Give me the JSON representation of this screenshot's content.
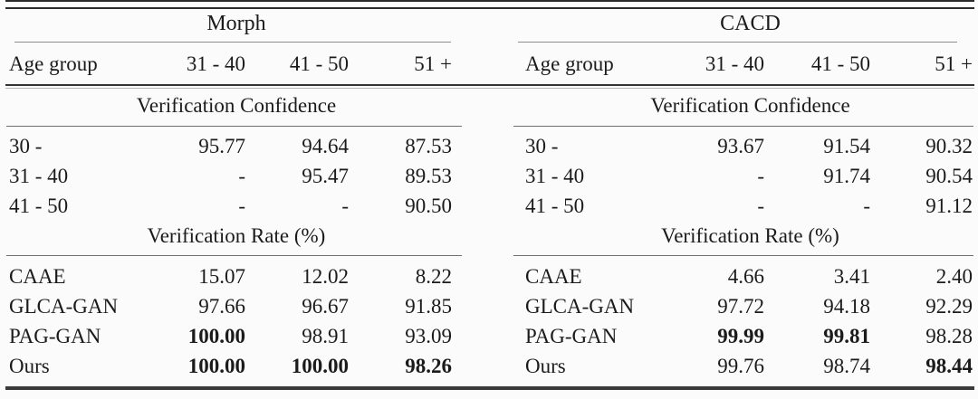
{
  "panels": [
    {
      "title": "Morph",
      "age_group_label": "Age group",
      "columns": [
        "31 - 40",
        "41 - 50",
        "51 +"
      ],
      "confidence": {
        "title": "Verification Confidence",
        "rows": [
          {
            "label": "30 -",
            "values": [
              "95.77",
              "94.64",
              "87.53"
            ],
            "bold": [
              false,
              false,
              false
            ]
          },
          {
            "label": "31 - 40",
            "values": [
              "-",
              "95.47",
              "89.53"
            ],
            "bold": [
              false,
              false,
              false
            ]
          },
          {
            "label": "41 - 50",
            "values": [
              "-",
              "-",
              "90.50"
            ],
            "bold": [
              false,
              false,
              false
            ]
          }
        ]
      },
      "rate": {
        "title": "Verification Rate (%)",
        "rows": [
          {
            "label": "CAAE",
            "values": [
              "15.07",
              "12.02",
              "8.22"
            ],
            "bold": [
              false,
              false,
              false
            ]
          },
          {
            "label": "GLCA-GAN",
            "values": [
              "97.66",
              "96.67",
              "91.85"
            ],
            "bold": [
              false,
              false,
              false
            ]
          },
          {
            "label": "PAG-GAN",
            "values": [
              "100.00",
              "98.91",
              "93.09"
            ],
            "bold": [
              true,
              false,
              false
            ]
          },
          {
            "label": "Ours",
            "values": [
              "100.00",
              "100.00",
              "98.26"
            ],
            "bold": [
              true,
              true,
              true
            ]
          }
        ]
      }
    },
    {
      "title": "CACD",
      "age_group_label": "Age group",
      "columns": [
        "31 - 40",
        "41 - 50",
        "51 +"
      ],
      "confidence": {
        "title": "Verification Confidence",
        "rows": [
          {
            "label": "30 -",
            "values": [
              "93.67",
              "91.54",
              "90.32"
            ],
            "bold": [
              false,
              false,
              false
            ]
          },
          {
            "label": "31 - 40",
            "values": [
              "-",
              "91.74",
              "90.54"
            ],
            "bold": [
              false,
              false,
              false
            ]
          },
          {
            "label": "41 - 50",
            "values": [
              "-",
              "-",
              "91.12"
            ],
            "bold": [
              false,
              false,
              false
            ]
          }
        ]
      },
      "rate": {
        "title": "Verification Rate (%)",
        "rows": [
          {
            "label": "CAAE",
            "values": [
              "4.66",
              "3.41",
              "2.40"
            ],
            "bold": [
              false,
              false,
              false
            ]
          },
          {
            "label": "GLCA-GAN",
            "values": [
              "97.72",
              "94.18",
              "92.29"
            ],
            "bold": [
              false,
              false,
              false
            ]
          },
          {
            "label": "PAG-GAN",
            "values": [
              "99.99",
              "99.81",
              "98.28"
            ],
            "bold": [
              true,
              true,
              false
            ]
          },
          {
            "label": "Ours",
            "values": [
              "99.76",
              "98.74",
              "98.44"
            ],
            "bold": [
              false,
              false,
              true
            ]
          }
        ]
      }
    }
  ]
}
